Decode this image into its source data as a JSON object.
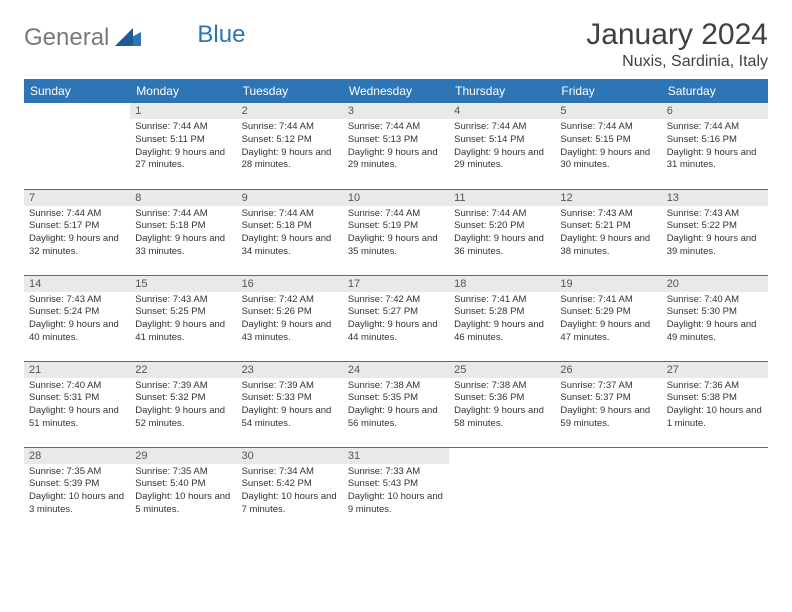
{
  "brand": {
    "part1": "General",
    "part2": "Blue"
  },
  "title": {
    "month": "January 2024",
    "location": "Nuxis, Sardinia, Italy"
  },
  "colors": {
    "header_bg": "#2e75b6",
    "header_text": "#ffffff",
    "daynum_bg": "#e9e9e9",
    "daynum_text": "#555555",
    "border": "#2e75b6",
    "body_text": "#333333",
    "logo_gray": "#7a7a7a",
    "logo_blue": "#2e75b6"
  },
  "weekdays": [
    "Sunday",
    "Monday",
    "Tuesday",
    "Wednesday",
    "Thursday",
    "Friday",
    "Saturday"
  ],
  "weeks": [
    [
      null,
      {
        "n": "1",
        "sr": "7:44 AM",
        "ss": "5:11 PM",
        "dl": "9 hours and 27 minutes."
      },
      {
        "n": "2",
        "sr": "7:44 AM",
        "ss": "5:12 PM",
        "dl": "9 hours and 28 minutes."
      },
      {
        "n": "3",
        "sr": "7:44 AM",
        "ss": "5:13 PM",
        "dl": "9 hours and 29 minutes."
      },
      {
        "n": "4",
        "sr": "7:44 AM",
        "ss": "5:14 PM",
        "dl": "9 hours and 29 minutes."
      },
      {
        "n": "5",
        "sr": "7:44 AM",
        "ss": "5:15 PM",
        "dl": "9 hours and 30 minutes."
      },
      {
        "n": "6",
        "sr": "7:44 AM",
        "ss": "5:16 PM",
        "dl": "9 hours and 31 minutes."
      }
    ],
    [
      {
        "n": "7",
        "sr": "7:44 AM",
        "ss": "5:17 PM",
        "dl": "9 hours and 32 minutes."
      },
      {
        "n": "8",
        "sr": "7:44 AM",
        "ss": "5:18 PM",
        "dl": "9 hours and 33 minutes."
      },
      {
        "n": "9",
        "sr": "7:44 AM",
        "ss": "5:18 PM",
        "dl": "9 hours and 34 minutes."
      },
      {
        "n": "10",
        "sr": "7:44 AM",
        "ss": "5:19 PM",
        "dl": "9 hours and 35 minutes."
      },
      {
        "n": "11",
        "sr": "7:44 AM",
        "ss": "5:20 PM",
        "dl": "9 hours and 36 minutes."
      },
      {
        "n": "12",
        "sr": "7:43 AM",
        "ss": "5:21 PM",
        "dl": "9 hours and 38 minutes."
      },
      {
        "n": "13",
        "sr": "7:43 AM",
        "ss": "5:22 PM",
        "dl": "9 hours and 39 minutes."
      }
    ],
    [
      {
        "n": "14",
        "sr": "7:43 AM",
        "ss": "5:24 PM",
        "dl": "9 hours and 40 minutes."
      },
      {
        "n": "15",
        "sr": "7:43 AM",
        "ss": "5:25 PM",
        "dl": "9 hours and 41 minutes."
      },
      {
        "n": "16",
        "sr": "7:42 AM",
        "ss": "5:26 PM",
        "dl": "9 hours and 43 minutes."
      },
      {
        "n": "17",
        "sr": "7:42 AM",
        "ss": "5:27 PM",
        "dl": "9 hours and 44 minutes."
      },
      {
        "n": "18",
        "sr": "7:41 AM",
        "ss": "5:28 PM",
        "dl": "9 hours and 46 minutes."
      },
      {
        "n": "19",
        "sr": "7:41 AM",
        "ss": "5:29 PM",
        "dl": "9 hours and 47 minutes."
      },
      {
        "n": "20",
        "sr": "7:40 AM",
        "ss": "5:30 PM",
        "dl": "9 hours and 49 minutes."
      }
    ],
    [
      {
        "n": "21",
        "sr": "7:40 AM",
        "ss": "5:31 PM",
        "dl": "9 hours and 51 minutes."
      },
      {
        "n": "22",
        "sr": "7:39 AM",
        "ss": "5:32 PM",
        "dl": "9 hours and 52 minutes."
      },
      {
        "n": "23",
        "sr": "7:39 AM",
        "ss": "5:33 PM",
        "dl": "9 hours and 54 minutes."
      },
      {
        "n": "24",
        "sr": "7:38 AM",
        "ss": "5:35 PM",
        "dl": "9 hours and 56 minutes."
      },
      {
        "n": "25",
        "sr": "7:38 AM",
        "ss": "5:36 PM",
        "dl": "9 hours and 58 minutes."
      },
      {
        "n": "26",
        "sr": "7:37 AM",
        "ss": "5:37 PM",
        "dl": "9 hours and 59 minutes."
      },
      {
        "n": "27",
        "sr": "7:36 AM",
        "ss": "5:38 PM",
        "dl": "10 hours and 1 minute."
      }
    ],
    [
      {
        "n": "28",
        "sr": "7:35 AM",
        "ss": "5:39 PM",
        "dl": "10 hours and 3 minutes."
      },
      {
        "n": "29",
        "sr": "7:35 AM",
        "ss": "5:40 PM",
        "dl": "10 hours and 5 minutes."
      },
      {
        "n": "30",
        "sr": "7:34 AM",
        "ss": "5:42 PM",
        "dl": "10 hours and 7 minutes."
      },
      {
        "n": "31",
        "sr": "7:33 AM",
        "ss": "5:43 PM",
        "dl": "10 hours and 9 minutes."
      },
      null,
      null,
      null
    ]
  ],
  "labels": {
    "sunrise": "Sunrise: ",
    "sunset": "Sunset: ",
    "daylight": "Daylight: "
  }
}
